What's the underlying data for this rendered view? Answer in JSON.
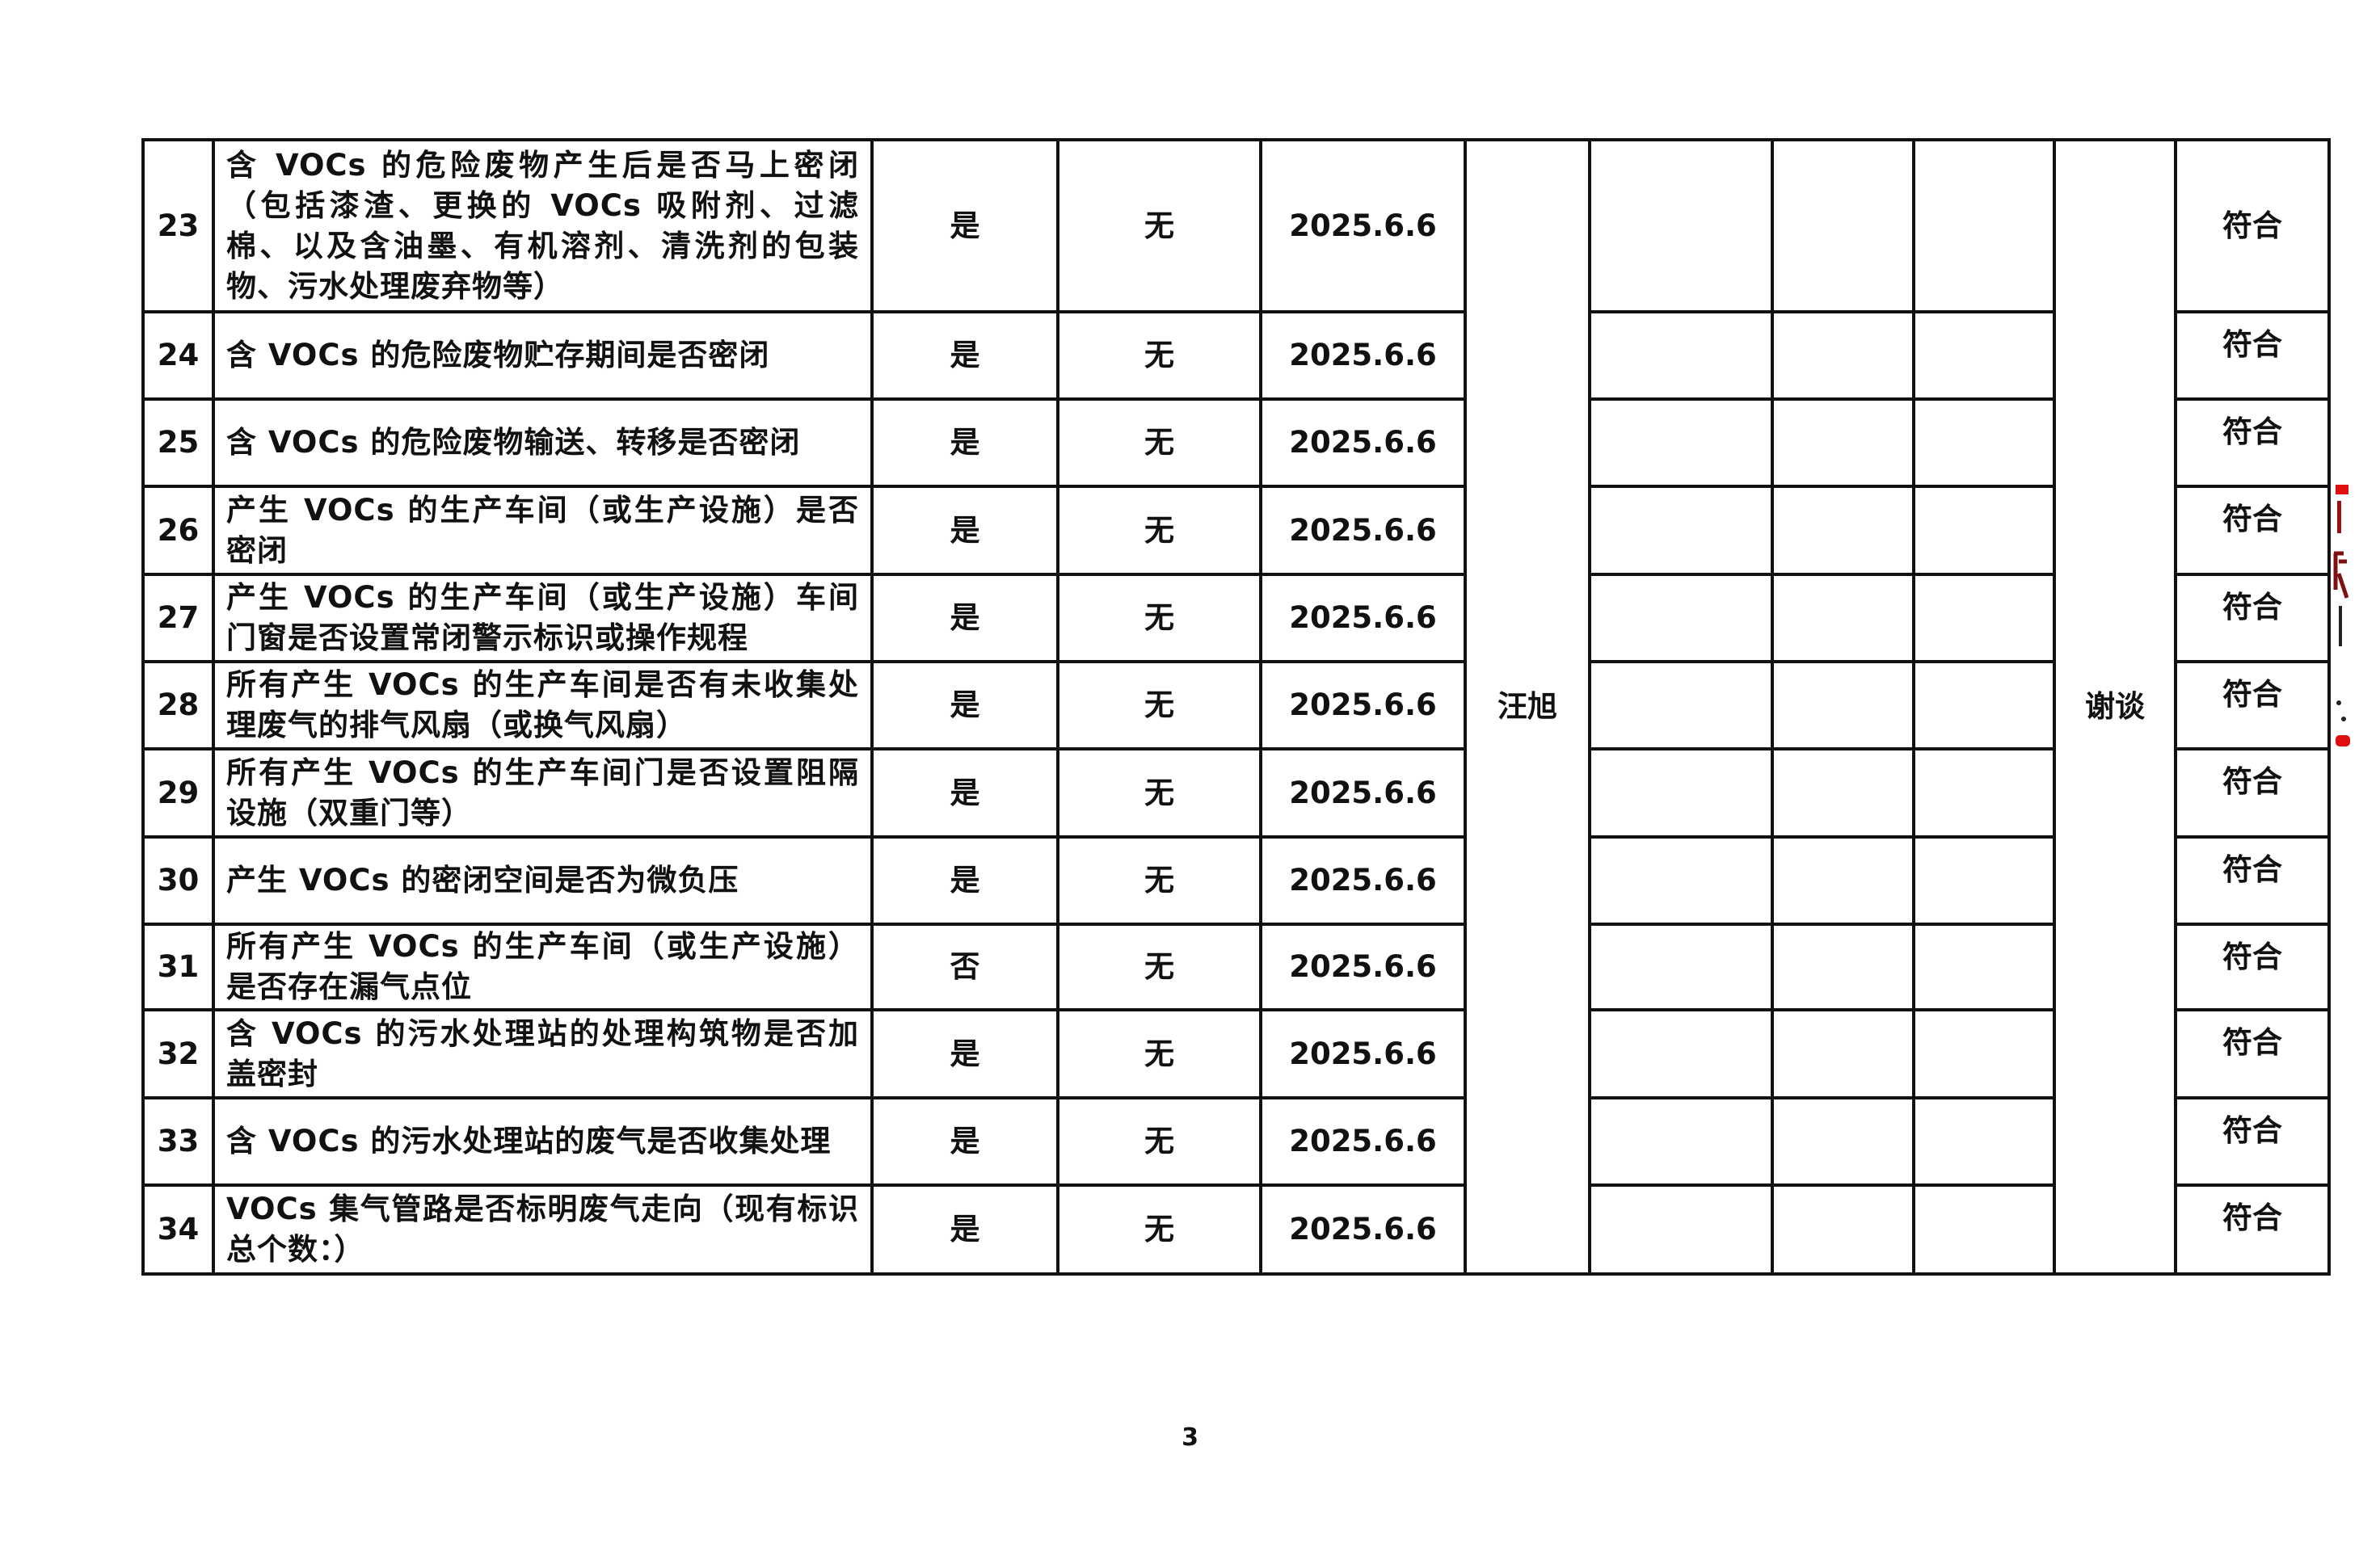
{
  "rows": [
    {
      "no": "23",
      "item": "含 VOCs 的危险废物产生后是否马上密闭（包括漆渣、更换的 VOCs 吸附剂、过滤棉、以及含油墨、有机溶剂、清洗剂的包装物、污水处理废弃物等）",
      "answer": "是",
      "issue": "无",
      "date": "2025.6.6",
      "result": "符合"
    },
    {
      "no": "24",
      "item": "含 VOCs 的危险废物贮存期间是否密闭",
      "answer": "是",
      "issue": "无",
      "date": "2025.6.6",
      "result": "符合"
    },
    {
      "no": "25",
      "item": "含 VOCs 的危险废物输送、转移是否密闭",
      "answer": "是",
      "issue": "无",
      "date": "2025.6.6",
      "result": "符合"
    },
    {
      "no": "26",
      "item": "产生 VOCs 的生产车间（或生产设施）是否密闭",
      "answer": "是",
      "issue": "无",
      "date": "2025.6.6",
      "result": "符合"
    },
    {
      "no": "27",
      "item": "产生 VOCs 的生产车间（或生产设施）车间门窗是否设置常闭警示标识或操作规程",
      "answer": "是",
      "issue": "无",
      "date": "2025.6.6",
      "result": "符合"
    },
    {
      "no": "28",
      "item": "所有产生 VOCs 的生产车间是否有未收集处理废气的排气风扇（或换气风扇）",
      "answer": "是",
      "issue": "无",
      "date": "2025.6.6",
      "result": "符合"
    },
    {
      "no": "29",
      "item": "所有产生 VOCs 的生产车间门是否设置阻隔设施（双重门等）",
      "answer": "是",
      "issue": "无",
      "date": "2025.6.6",
      "result": "符合"
    },
    {
      "no": "30",
      "item": "产生 VOCs 的密闭空间是否为微负压",
      "answer": "是",
      "issue": "无",
      "date": "2025.6.6",
      "result": "符合"
    },
    {
      "no": "31",
      "item": "所有产生 VOCs 的生产车间（或生产设施）是否存在漏气点位",
      "answer": "否",
      "issue": "无",
      "date": "2025.6.6",
      "result": "符合"
    },
    {
      "no": "32",
      "item": "含 VOCs 的污水处理站的处理构筑物是否加盖密封",
      "answer": "是",
      "issue": "无",
      "date": "2025.6.6",
      "result": "符合"
    },
    {
      "no": "33",
      "item": "含 VOCs 的污水处理站的废气是否收集处理",
      "answer": "是",
      "issue": "无",
      "date": "2025.6.6",
      "result": "符合"
    },
    {
      "no": "34",
      "item": "VOCs 集气管路是否标明废气走向（现有标识总个数：）",
      "answer": "是",
      "issue": "无",
      "date": "2025.6.6",
      "result": "符合"
    }
  ],
  "inspector": "汪旭",
  "method": "谢谈",
  "page_number": "3",
  "stamp_color": "#e01010"
}
